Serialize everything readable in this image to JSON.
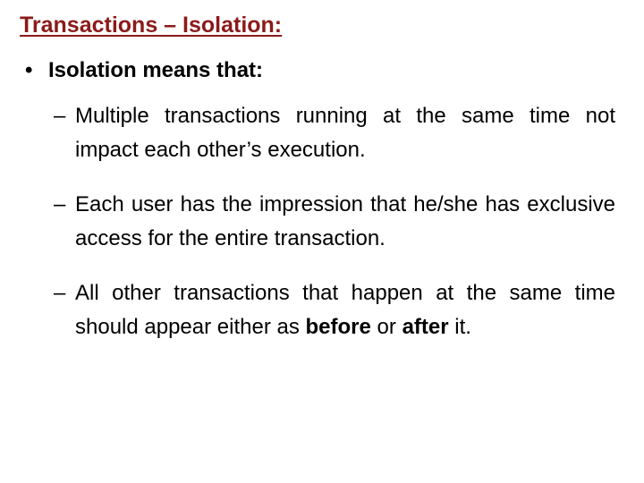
{
  "title_color": "#8b1a1a",
  "text_color": "#000000",
  "title": "Transactions – Isolation:",
  "level1": {
    "bullet": "•",
    "text": "Isolation means that:"
  },
  "items": [
    {
      "dash": "–",
      "html": "Multiple transactions running at the same time not impact each other’s execution."
    },
    {
      "dash": "–",
      "html": "Each user has the impression that he/she has exclusive access for the entire transaction."
    },
    {
      "dash": "–",
      "html": "All other transactions that happen at the same time should appear either as <span class=\"bold\">before</span> or <span class=\"bold\">after</span> it."
    }
  ]
}
